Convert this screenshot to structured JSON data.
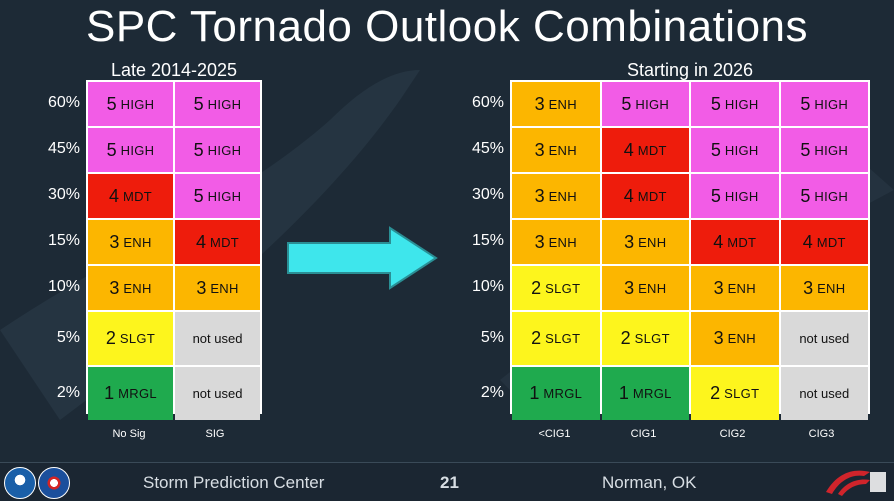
{
  "title": "SPC Tornado Outlook Combinations",
  "left_table": {
    "subtitle": "Late 2014-2025",
    "row_labels": [
      "60%",
      "45%",
      "30%",
      "15%",
      "10%",
      "5%",
      "2%"
    ],
    "col_labels": [
      "No Sig",
      "SIG"
    ],
    "rows": [
      [
        {
          "lvl": "5",
          "abbr": "HIGH",
          "color": "#f25ce6"
        },
        {
          "lvl": "5",
          "abbr": "HIGH",
          "color": "#f25ce6"
        }
      ],
      [
        {
          "lvl": "5",
          "abbr": "HIGH",
          "color": "#f25ce6"
        },
        {
          "lvl": "5",
          "abbr": "HIGH",
          "color": "#f25ce6"
        }
      ],
      [
        {
          "lvl": "4",
          "abbr": "MDT",
          "color": "#ee1c0c"
        },
        {
          "lvl": "5",
          "abbr": "HIGH",
          "color": "#f25ce6"
        }
      ],
      [
        {
          "lvl": "3",
          "abbr": "ENH",
          "color": "#fcb600"
        },
        {
          "lvl": "4",
          "abbr": "MDT",
          "color": "#ee1c0c"
        }
      ],
      [
        {
          "lvl": "3",
          "abbr": "ENH",
          "color": "#fcb600"
        },
        {
          "lvl": "3",
          "abbr": "ENH",
          "color": "#fcb600"
        }
      ],
      [
        {
          "lvl": "2",
          "abbr": "SLGT",
          "color": "#fdf51d"
        },
        {
          "text": "not used",
          "color": "#d9d9d9"
        }
      ],
      [
        {
          "lvl": "1",
          "abbr": "MRGL",
          "color": "#1faa4e"
        },
        {
          "text": "not used",
          "color": "#d9d9d9"
        }
      ]
    ]
  },
  "right_table": {
    "subtitle": "Starting in 2026",
    "row_labels": [
      "60%",
      "45%",
      "30%",
      "15%",
      "10%",
      "5%",
      "2%"
    ],
    "col_labels": [
      "<CIG1",
      "CIG1",
      "CIG2",
      "CIG3"
    ],
    "rows": [
      [
        {
          "lvl": "3",
          "abbr": "ENH",
          "color": "#fcb600"
        },
        {
          "lvl": "5",
          "abbr": "HIGH",
          "color": "#f25ce6"
        },
        {
          "lvl": "5",
          "abbr": "HIGH",
          "color": "#f25ce6"
        },
        {
          "lvl": "5",
          "abbr": "HIGH",
          "color": "#f25ce6"
        }
      ],
      [
        {
          "lvl": "3",
          "abbr": "ENH",
          "color": "#fcb600"
        },
        {
          "lvl": "4",
          "abbr": "MDT",
          "color": "#ee1c0c"
        },
        {
          "lvl": "5",
          "abbr": "HIGH",
          "color": "#f25ce6"
        },
        {
          "lvl": "5",
          "abbr": "HIGH",
          "color": "#f25ce6"
        }
      ],
      [
        {
          "lvl": "3",
          "abbr": "ENH",
          "color": "#fcb600"
        },
        {
          "lvl": "4",
          "abbr": "MDT",
          "color": "#ee1c0c"
        },
        {
          "lvl": "5",
          "abbr": "HIGH",
          "color": "#f25ce6"
        },
        {
          "lvl": "5",
          "abbr": "HIGH",
          "color": "#f25ce6"
        }
      ],
      [
        {
          "lvl": "3",
          "abbr": "ENH",
          "color": "#fcb600"
        },
        {
          "lvl": "3",
          "abbr": "ENH",
          "color": "#fcb600"
        },
        {
          "lvl": "4",
          "abbr": "MDT",
          "color": "#ee1c0c"
        },
        {
          "lvl": "4",
          "abbr": "MDT",
          "color": "#ee1c0c"
        }
      ],
      [
        {
          "lvl": "2",
          "abbr": "SLGT",
          "color": "#fdf51d"
        },
        {
          "lvl": "3",
          "abbr": "ENH",
          "color": "#fcb600"
        },
        {
          "lvl": "3",
          "abbr": "ENH",
          "color": "#fcb600"
        },
        {
          "lvl": "3",
          "abbr": "ENH",
          "color": "#fcb600"
        }
      ],
      [
        {
          "lvl": "2",
          "abbr": "SLGT",
          "color": "#fdf51d"
        },
        {
          "lvl": "2",
          "abbr": "SLGT",
          "color": "#fdf51d"
        },
        {
          "lvl": "3",
          "abbr": "ENH",
          "color": "#fcb600"
        },
        {
          "text": "not used",
          "color": "#d9d9d9"
        }
      ],
      [
        {
          "lvl": "1",
          "abbr": "MRGL",
          "color": "#1faa4e"
        },
        {
          "lvl": "1",
          "abbr": "MRGL",
          "color": "#1faa4e"
        },
        {
          "lvl": "2",
          "abbr": "SLGT",
          "color": "#fdf51d"
        },
        {
          "text": "not used",
          "color": "#d9d9d9"
        }
      ]
    ]
  },
  "arrow_color": "#3ee6ec",
  "footer": {
    "left": "Storm Prediction Center",
    "page": "21",
    "right": "Norman, OK",
    "logos": [
      "noaa-logo",
      "nws-logo",
      "spc-logo"
    ]
  }
}
